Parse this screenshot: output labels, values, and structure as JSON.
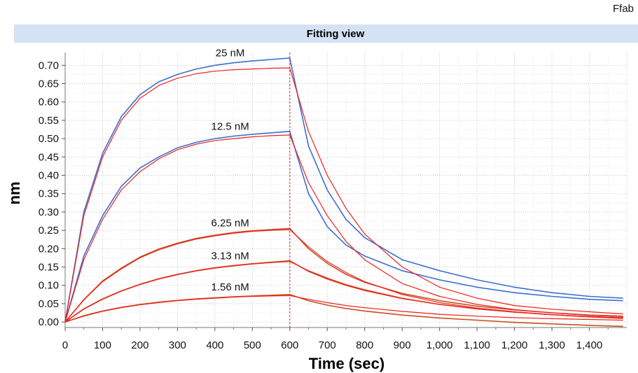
{
  "corner_label": "Ffab",
  "chart_data": {
    "type": "line",
    "title": "Fitting view",
    "xlabel": "Time (sec)",
    "ylabel": "nm",
    "xlim": [
      0,
      1500
    ],
    "ylim": [
      -0.015,
      0.735
    ],
    "x_ticks": [
      0,
      100,
      200,
      300,
      400,
      500,
      600,
      700,
      800,
      900,
      1000,
      1100,
      1200,
      1300,
      1400
    ],
    "x_tick_labels": [
      "0",
      "100",
      "200",
      "300",
      "400",
      "500",
      "600",
      "700",
      "800",
      "900",
      "1,000",
      "1,100",
      "1,200",
      "1,300",
      "1,400"
    ],
    "y_ticks": [
      0.0,
      0.05,
      0.1,
      0.15,
      0.2,
      0.25,
      0.3,
      0.35,
      0.4,
      0.45,
      0.5,
      0.55,
      0.6,
      0.65,
      0.7
    ],
    "y_tick_labels": [
      "0.00",
      "0.05",
      "0.10",
      "0.15",
      "0.20",
      "0.25",
      "0.30",
      "0.35",
      "0.40",
      "0.45",
      "0.50",
      "0.55",
      "0.60",
      "0.65",
      "0.70"
    ],
    "grid": true,
    "association_end": 600,
    "colors": {
      "measured_high": "#3a6fd0",
      "measured_low": "#c8501e",
      "fit": "#f02020",
      "title_band": "#d5e2f5",
      "grid": "#b8b8b8"
    },
    "series": [
      {
        "label": "25 nM",
        "measured_color": "#3a6fd0",
        "fit": [
          [
            0,
            0.0
          ],
          [
            50,
            0.29
          ],
          [
            100,
            0.45
          ],
          [
            150,
            0.55
          ],
          [
            200,
            0.61
          ],
          [
            250,
            0.645
          ],
          [
            300,
            0.665
          ],
          [
            350,
            0.677
          ],
          [
            400,
            0.684
          ],
          [
            450,
            0.688
          ],
          [
            500,
            0.69
          ],
          [
            550,
            0.692
          ],
          [
            600,
            0.693
          ],
          [
            650,
            0.52
          ],
          [
            700,
            0.4
          ],
          [
            750,
            0.31
          ],
          [
            800,
            0.24
          ],
          [
            900,
            0.15
          ],
          [
            1000,
            0.095
          ],
          [
            1100,
            0.065
          ],
          [
            1200,
            0.045
          ],
          [
            1300,
            0.035
          ],
          [
            1400,
            0.028
          ],
          [
            1490,
            0.022
          ]
        ],
        "measured": [
          [
            0,
            0.0
          ],
          [
            50,
            0.3
          ],
          [
            100,
            0.46
          ],
          [
            150,
            0.56
          ],
          [
            200,
            0.62
          ],
          [
            250,
            0.655
          ],
          [
            300,
            0.675
          ],
          [
            350,
            0.69
          ],
          [
            400,
            0.7
          ],
          [
            450,
            0.707
          ],
          [
            500,
            0.712
          ],
          [
            550,
            0.716
          ],
          [
            600,
            0.72
          ],
          [
            650,
            0.48
          ],
          [
            700,
            0.36
          ],
          [
            750,
            0.28
          ],
          [
            800,
            0.23
          ],
          [
            900,
            0.17
          ],
          [
            1000,
            0.14
          ],
          [
            1100,
            0.115
          ],
          [
            1200,
            0.095
          ],
          [
            1300,
            0.08
          ],
          [
            1400,
            0.07
          ],
          [
            1490,
            0.065
          ]
        ]
      },
      {
        "label": "12.5 nM",
        "measured_color": "#3a6fd0",
        "fit": [
          [
            0,
            0.0
          ],
          [
            50,
            0.17
          ],
          [
            100,
            0.28
          ],
          [
            150,
            0.36
          ],
          [
            200,
            0.41
          ],
          [
            250,
            0.445
          ],
          [
            300,
            0.47
          ],
          [
            350,
            0.485
          ],
          [
            400,
            0.495
          ],
          [
            450,
            0.5
          ],
          [
            500,
            0.505
          ],
          [
            550,
            0.508
          ],
          [
            600,
            0.51
          ],
          [
            650,
            0.38
          ],
          [
            700,
            0.29
          ],
          [
            750,
            0.22
          ],
          [
            800,
            0.17
          ],
          [
            900,
            0.105
          ],
          [
            1000,
            0.07
          ],
          [
            1100,
            0.048
          ],
          [
            1200,
            0.034
          ],
          [
            1300,
            0.025
          ],
          [
            1400,
            0.018
          ],
          [
            1490,
            0.015
          ]
        ],
        "measured": [
          [
            0,
            0.0
          ],
          [
            50,
            0.18
          ],
          [
            100,
            0.29
          ],
          [
            150,
            0.37
          ],
          [
            200,
            0.42
          ],
          [
            250,
            0.45
          ],
          [
            300,
            0.475
          ],
          [
            350,
            0.49
          ],
          [
            400,
            0.5
          ],
          [
            450,
            0.507
          ],
          [
            500,
            0.512
          ],
          [
            550,
            0.516
          ],
          [
            600,
            0.52
          ],
          [
            650,
            0.35
          ],
          [
            700,
            0.26
          ],
          [
            750,
            0.21
          ],
          [
            800,
            0.18
          ],
          [
            900,
            0.14
          ],
          [
            1000,
            0.115
          ],
          [
            1100,
            0.095
          ],
          [
            1200,
            0.08
          ],
          [
            1300,
            0.07
          ],
          [
            1400,
            0.062
          ],
          [
            1490,
            0.058
          ]
        ]
      },
      {
        "label": "6.25 nM",
        "measured_color": "#c8501e",
        "fit": [
          [
            0,
            0.0
          ],
          [
            50,
            0.06
          ],
          [
            100,
            0.11
          ],
          [
            150,
            0.145
          ],
          [
            200,
            0.175
          ],
          [
            250,
            0.197
          ],
          [
            300,
            0.213
          ],
          [
            350,
            0.226
          ],
          [
            400,
            0.235
          ],
          [
            450,
            0.242
          ],
          [
            500,
            0.247
          ],
          [
            550,
            0.25
          ],
          [
            600,
            0.252
          ],
          [
            650,
            0.205
          ],
          [
            700,
            0.165
          ],
          [
            750,
            0.135
          ],
          [
            800,
            0.11
          ],
          [
            900,
            0.075
          ],
          [
            1000,
            0.053
          ],
          [
            1100,
            0.038
          ],
          [
            1200,
            0.028
          ],
          [
            1300,
            0.02
          ],
          [
            1400,
            0.015
          ],
          [
            1490,
            0.012
          ]
        ],
        "measured": [
          [
            0,
            0.0
          ],
          [
            50,
            0.061
          ],
          [
            100,
            0.112
          ],
          [
            150,
            0.147
          ],
          [
            200,
            0.177
          ],
          [
            250,
            0.199
          ],
          [
            300,
            0.215
          ],
          [
            350,
            0.228
          ],
          [
            400,
            0.237
          ],
          [
            450,
            0.244
          ],
          [
            500,
            0.249
          ],
          [
            550,
            0.252
          ],
          [
            600,
            0.255
          ],
          [
            650,
            0.2
          ],
          [
            700,
            0.16
          ],
          [
            750,
            0.13
          ],
          [
            800,
            0.108
          ],
          [
            900,
            0.078
          ],
          [
            1000,
            0.058
          ],
          [
            1100,
            0.043
          ],
          [
            1200,
            0.033
          ],
          [
            1300,
            0.025
          ],
          [
            1400,
            0.019
          ],
          [
            1490,
            0.016
          ]
        ]
      },
      {
        "label": "3.13 nM",
        "measured_color": "#c8501e",
        "fit": [
          [
            0,
            0.0
          ],
          [
            50,
            0.035
          ],
          [
            100,
            0.062
          ],
          [
            150,
            0.084
          ],
          [
            200,
            0.102
          ],
          [
            250,
            0.117
          ],
          [
            300,
            0.129
          ],
          [
            350,
            0.139
          ],
          [
            400,
            0.147
          ],
          [
            450,
            0.153
          ],
          [
            500,
            0.158
          ],
          [
            550,
            0.162
          ],
          [
            600,
            0.165
          ],
          [
            650,
            0.14
          ],
          [
            700,
            0.12
          ],
          [
            750,
            0.102
          ],
          [
            800,
            0.088
          ],
          [
            900,
            0.065
          ],
          [
            1000,
            0.048
          ],
          [
            1100,
            0.036
          ],
          [
            1200,
            0.027
          ],
          [
            1300,
            0.02
          ],
          [
            1400,
            0.015
          ],
          [
            1490,
            0.012
          ]
        ],
        "measured": [
          [
            0,
            0.0
          ],
          [
            50,
            0.036
          ],
          [
            100,
            0.063
          ],
          [
            150,
            0.085
          ],
          [
            200,
            0.103
          ],
          [
            250,
            0.118
          ],
          [
            300,
            0.13
          ],
          [
            350,
            0.14
          ],
          [
            400,
            0.148
          ],
          [
            450,
            0.154
          ],
          [
            500,
            0.159
          ],
          [
            550,
            0.163
          ],
          [
            600,
            0.167
          ],
          [
            650,
            0.138
          ],
          [
            700,
            0.117
          ],
          [
            750,
            0.1
          ],
          [
            800,
            0.086
          ],
          [
            900,
            0.064
          ],
          [
            1000,
            0.048
          ],
          [
            1100,
            0.036
          ],
          [
            1200,
            0.027
          ],
          [
            1300,
            0.02
          ],
          [
            1400,
            0.014
          ],
          [
            1490,
            0.01
          ]
        ]
      },
      {
        "label": "1.56 nM",
        "measured_color": "#c8501e",
        "fit": [
          [
            0,
            0.0
          ],
          [
            50,
            0.016
          ],
          [
            100,
            0.029
          ],
          [
            150,
            0.039
          ],
          [
            200,
            0.047
          ],
          [
            250,
            0.053
          ],
          [
            300,
            0.058
          ],
          [
            350,
            0.062
          ],
          [
            400,
            0.065
          ],
          [
            450,
            0.068
          ],
          [
            500,
            0.07
          ],
          [
            550,
            0.071
          ],
          [
            600,
            0.072
          ],
          [
            650,
            0.062
          ],
          [
            700,
            0.053
          ],
          [
            750,
            0.045
          ],
          [
            800,
            0.039
          ],
          [
            900,
            0.029
          ],
          [
            1000,
            0.021
          ],
          [
            1100,
            0.016
          ],
          [
            1200,
            0.012
          ],
          [
            1300,
            0.009
          ],
          [
            1400,
            0.007
          ],
          [
            1490,
            0.005
          ]
        ],
        "measured": [
          [
            0,
            0.0
          ],
          [
            50,
            0.017
          ],
          [
            100,
            0.03
          ],
          [
            150,
            0.04
          ],
          [
            200,
            0.048
          ],
          [
            250,
            0.054
          ],
          [
            300,
            0.059
          ],
          [
            350,
            0.063
          ],
          [
            400,
            0.066
          ],
          [
            450,
            0.069
          ],
          [
            500,
            0.071
          ],
          [
            550,
            0.073
          ],
          [
            600,
            0.075
          ],
          [
            650,
            0.058
          ],
          [
            700,
            0.046
          ],
          [
            750,
            0.037
          ],
          [
            800,
            0.03
          ],
          [
            900,
            0.019
          ],
          [
            1000,
            0.011
          ],
          [
            1100,
            0.005
          ],
          [
            1200,
            -0.001
          ],
          [
            1300,
            -0.005
          ],
          [
            1400,
            -0.009
          ],
          [
            1490,
            -0.012
          ]
        ]
      }
    ]
  }
}
